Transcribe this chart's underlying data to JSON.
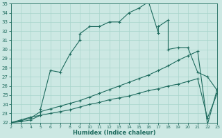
{
  "bg_color": "#cce8e3",
  "line_color": "#1e6b5e",
  "grid_color": "#a8d4cc",
  "xlabel": "Humidex (Indice chaleur)",
  "xlim": [
    2,
    23
  ],
  "ylim": [
    22,
    35
  ],
  "xticks": [
    2,
    3,
    4,
    5,
    6,
    7,
    8,
    9,
    10,
    11,
    12,
    13,
    14,
    15,
    16,
    17,
    18,
    19,
    20,
    21,
    22,
    23
  ],
  "yticks": [
    22,
    23,
    24,
    25,
    26,
    27,
    28,
    29,
    30,
    31,
    32,
    33,
    34,
    35
  ],
  "curve1_x": [
    2,
    3,
    4,
    5,
    5,
    6,
    7,
    8,
    9,
    9,
    10,
    11,
    12,
    13,
    14,
    15,
    16,
    17,
    17,
    18,
    18,
    19,
    20,
    21,
    22,
    23
  ],
  "curve1_y": [
    22,
    22.3,
    22.6,
    22.8,
    23.5,
    27.7,
    27.5,
    29.5,
    31.0,
    31.7,
    32.5,
    32.5,
    33.0,
    33.0,
    34.0,
    34.5,
    35.2,
    31.8,
    32.5,
    33.2,
    30.0,
    30.2,
    30.2,
    27.5,
    27.0,
    25.5
  ],
  "curve2_x": [
    2,
    3,
    4,
    5,
    6,
    7,
    8,
    9,
    10,
    11,
    12,
    13,
    14,
    15,
    16,
    17,
    18,
    19,
    20,
    21,
    22,
    23
  ],
  "curve2_y": [
    22,
    22.2,
    22.5,
    23.2,
    23.5,
    23.8,
    24.1,
    24.4,
    24.8,
    25.2,
    25.6,
    26.0,
    26.4,
    26.8,
    27.2,
    27.7,
    28.2,
    28.8,
    29.3,
    29.8,
    21.8,
    25.7
  ],
  "curve3_x": [
    2,
    3,
    4,
    5,
    6,
    7,
    8,
    9,
    10,
    11,
    12,
    13,
    14,
    15,
    16,
    17,
    18,
    19,
    20,
    21,
    22,
    23
  ],
  "curve3_y": [
    22,
    22.1,
    22.3,
    22.8,
    23.0,
    23.2,
    23.4,
    23.7,
    24.0,
    24.2,
    24.5,
    24.7,
    24.9,
    25.2,
    25.5,
    25.7,
    26.0,
    26.2,
    26.5,
    26.8,
    22.5,
    25.2
  ]
}
